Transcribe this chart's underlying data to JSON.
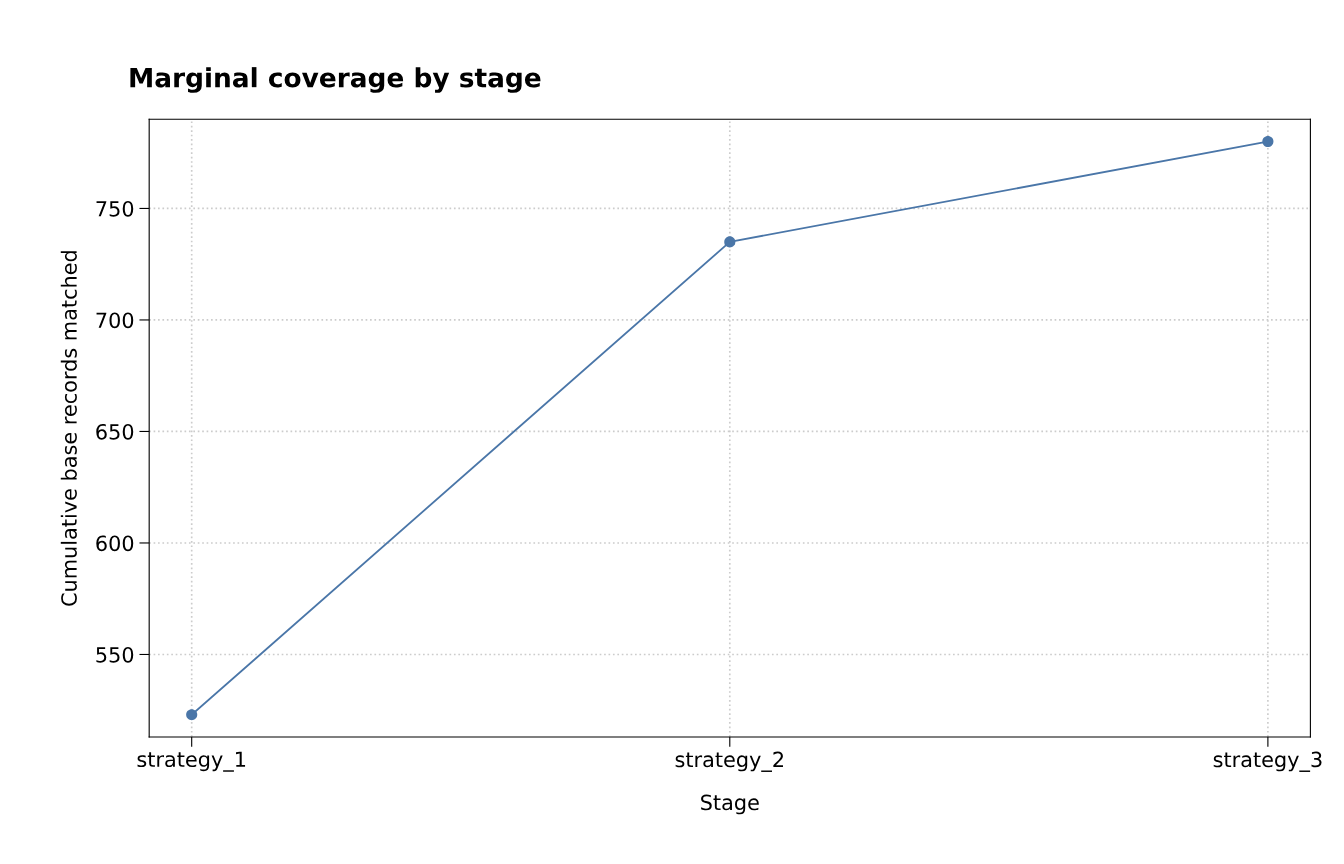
{
  "chart_data": {
    "type": "line",
    "title": "Marginal coverage by stage",
    "xlabel": "Stage",
    "ylabel": "Cumulative base records matched",
    "categories": [
      "strategy_1",
      "strategy_2",
      "strategy_3"
    ],
    "series": [
      {
        "color": "#4a76a8",
        "values": [
          523,
          735,
          780
        ]
      }
    ],
    "ylim": [
      513,
      790
    ],
    "yticks": [
      550,
      600,
      650,
      700,
      750
    ],
    "grid": true,
    "marker": "circle",
    "line_style": "solid"
  }
}
